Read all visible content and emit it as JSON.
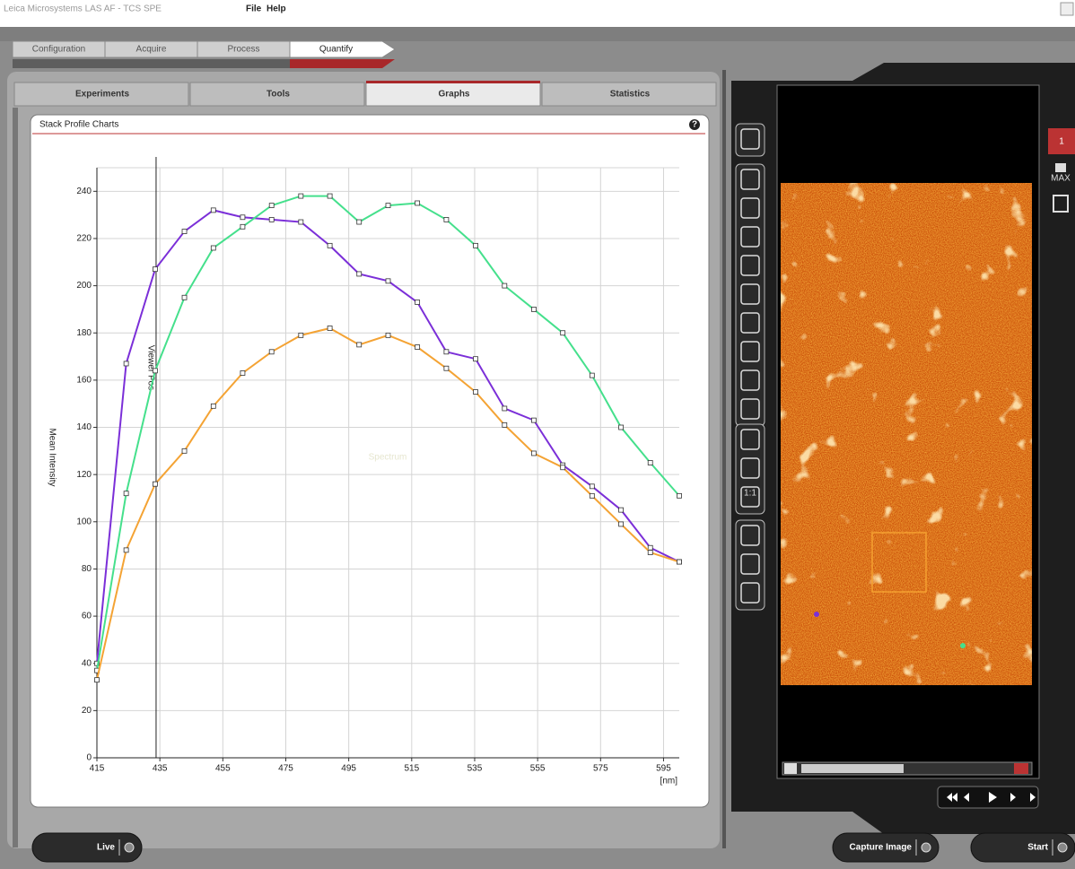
{
  "window": {
    "title": "Leica Microsystems LAS AF - TCS SPE",
    "menu": [
      "File",
      "Help"
    ]
  },
  "tabs": [
    "Configuration",
    "Acquire",
    "Process",
    "Quantify"
  ],
  "subtabs": [
    "Experiments",
    "Tools",
    "Graphs",
    "Statistics"
  ],
  "panel_title": "Stack Profile Charts",
  "chart_data": {
    "type": "line",
    "ylabel": "Mean Intensity",
    "xlabel": "[nm]",
    "watermark": "Spectrum",
    "marker_x": 433.8,
    "marker_label": "Viewer Pos",
    "x": [
      415,
      424.3,
      433.5,
      442.8,
      452,
      461.3,
      470.5,
      479.8,
      489,
      498.3,
      507.5,
      516.8,
      526,
      535.3,
      544.5,
      553.8,
      563,
      572.3,
      581.5,
      590.8,
      600
    ],
    "series": [
      {
        "color": "#7b2fd8",
        "values": [
          40,
          167,
          207,
          223,
          232,
          229,
          228,
          227,
          217,
          205,
          202,
          193,
          172,
          169,
          148,
          143,
          124,
          115,
          105,
          89,
          83
        ]
      },
      {
        "color": "#45e08c",
        "values": [
          37,
          112,
          164,
          195,
          216,
          225,
          234,
          238,
          238,
          227,
          234,
          235,
          228,
          217,
          200,
          190,
          180,
          162,
          140,
          125,
          111
        ]
      },
      {
        "color": "#f4a334",
        "values": [
          33,
          88,
          116,
          130,
          149,
          163,
          172,
          179,
          182,
          175,
          179,
          174,
          165,
          155,
          141,
          129,
          123,
          111,
          99,
          87,
          83
        ]
      }
    ],
    "xlim": [
      415,
      600
    ],
    "ylim": [
      0,
      250
    ],
    "xticks": [
      415,
      435,
      455,
      475,
      495,
      515,
      535,
      555,
      575,
      595
    ],
    "yticks": [
      0,
      20,
      40,
      60,
      80,
      100,
      120,
      140,
      160,
      180,
      200,
      220,
      240
    ],
    "grid": true
  },
  "toolbar": {
    "zoom_label": "1:1"
  },
  "side": {
    "channel": "1",
    "max_label": "MAX"
  },
  "buttons": [
    "Live",
    "Capture Image",
    "Start"
  ]
}
